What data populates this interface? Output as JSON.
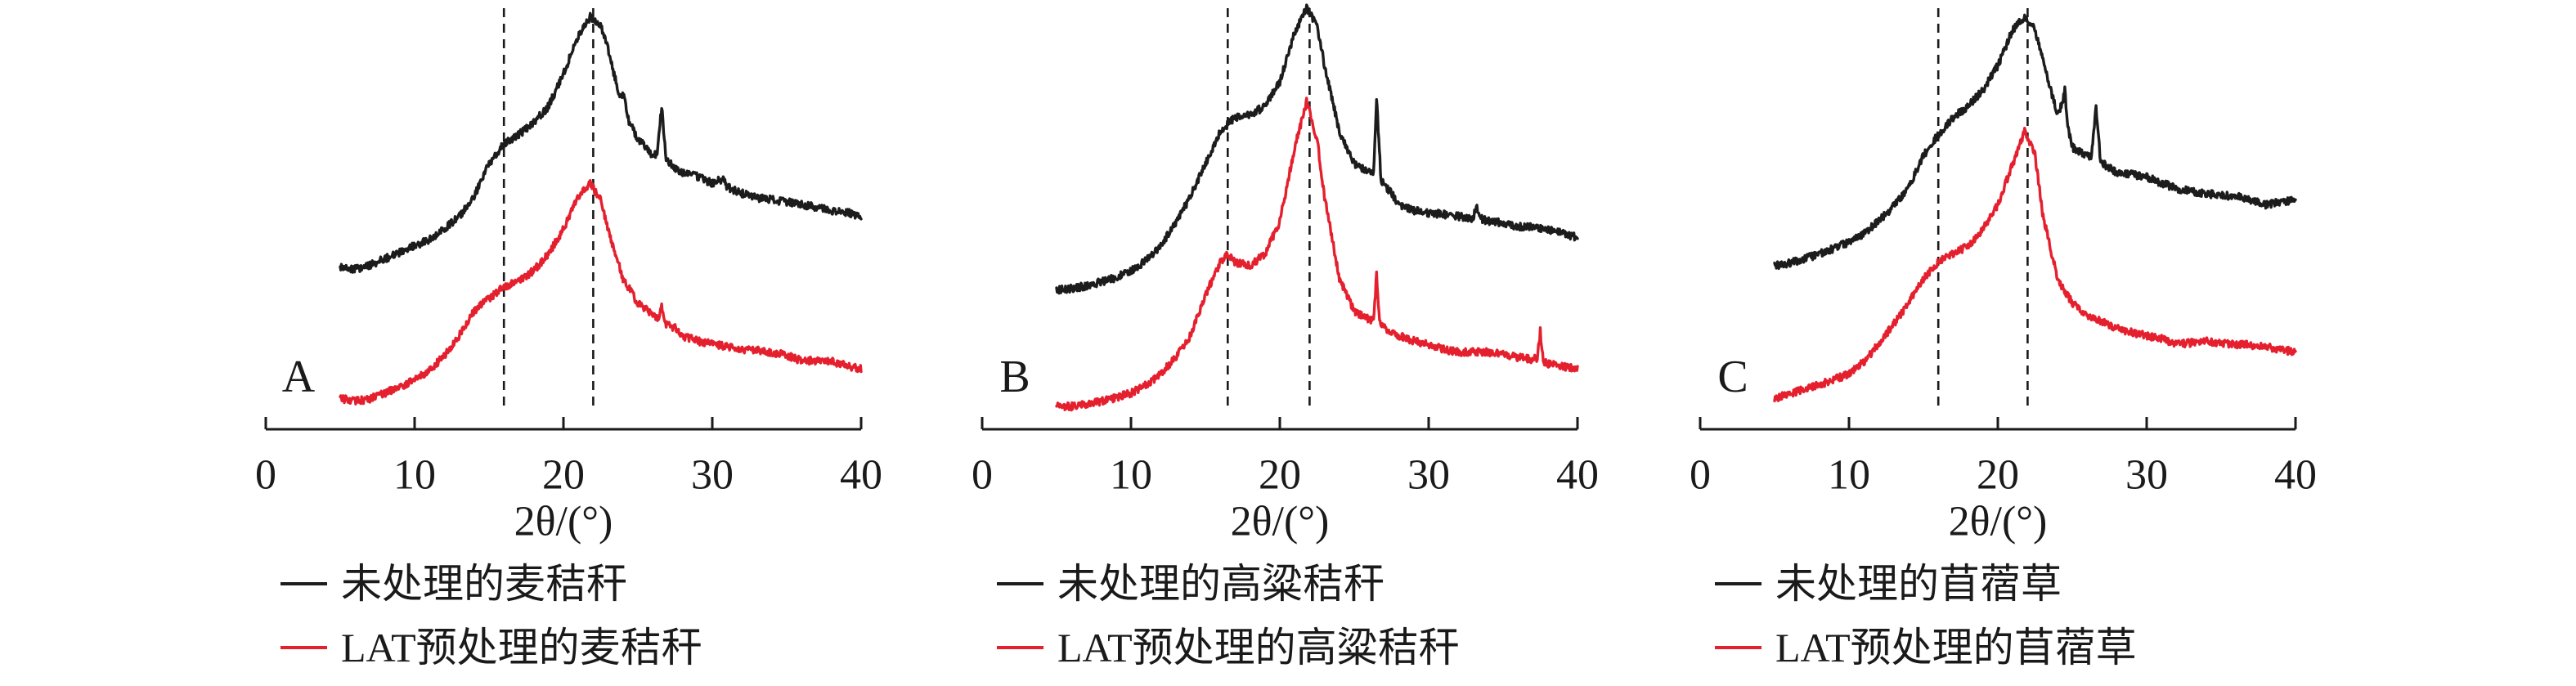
{
  "chart_data": [
    {
      "label": "A",
      "type": "line",
      "xlabel": "2θ/(°)",
      "xlim": [
        0,
        40
      ],
      "xticks": [
        0,
        10,
        20,
        30,
        40
      ],
      "ylim": [
        0,
        100
      ],
      "reference_lines_x": [
        16,
        22
      ],
      "legend_position": "below",
      "series": [
        {
          "name": "未处理的麦秸秆",
          "color": "#1c1c1c",
          "points": [
            [
              5,
              38.5
            ],
            [
              6,
              38
            ],
            [
              7,
              39
            ],
            [
              8,
              40.5
            ],
            [
              9,
              42
            ],
            [
              10,
              43.6
            ],
            [
              11,
              45
            ],
            [
              12,
              47.5
            ],
            [
              13,
              50.5
            ],
            [
              14,
              55.3
            ],
            [
              15,
              63
            ],
            [
              16,
              67.7
            ],
            [
              17,
              70
            ],
            [
              18,
              72.8
            ],
            [
              19,
              76.7
            ],
            [
              20,
              84.4
            ],
            [
              21,
              93.4
            ],
            [
              21.8,
              98
            ],
            [
              22.5,
              96
            ],
            [
              23,
              90.3
            ],
            [
              23.7,
              80
            ],
            [
              24.1,
              79
            ],
            [
              24.4,
              73
            ],
            [
              25,
              69
            ],
            [
              26,
              65
            ],
            [
              26.3,
              65.5
            ],
            [
              26.6,
              76.7
            ],
            [
              26.9,
              64
            ],
            [
              27.5,
              62
            ],
            [
              28,
              61
            ],
            [
              29,
              60
            ],
            [
              30,
              58.4
            ],
            [
              30.7,
              59.5
            ],
            [
              31,
              57.5
            ],
            [
              32,
              56
            ],
            [
              33,
              55
            ],
            [
              34,
              54.5
            ],
            [
              35,
              54
            ],
            [
              36,
              53.3
            ],
            [
              37,
              52.8
            ],
            [
              38,
              52
            ],
            [
              39,
              51.5
            ],
            [
              40,
              50.6
            ]
          ]
        },
        {
          "name": "LAT预处理的麦秸秆",
          "color": "#e5202e",
          "points": [
            [
              5,
              7.4
            ],
            [
              6,
              6.6
            ],
            [
              7,
              7.2
            ],
            [
              8,
              8.6
            ],
            [
              9,
              10
            ],
            [
              10,
              11.7
            ],
            [
              11,
              14
            ],
            [
              12,
              17.5
            ],
            [
              13,
              22.2
            ],
            [
              14,
              28
            ],
            [
              15,
              31.1
            ],
            [
              16,
              33.9
            ],
            [
              17,
              35
            ],
            [
              18,
              37.7
            ],
            [
              19,
              41.6
            ],
            [
              20,
              47.5
            ],
            [
              21,
              55.3
            ],
            [
              21.8,
              58.4
            ],
            [
              22.5,
              54.5
            ],
            [
              23,
              47.5
            ],
            [
              24,
              35.8
            ],
            [
              25,
              30
            ],
            [
              26,
              27.2
            ],
            [
              26.4,
              26.5
            ],
            [
              26.6,
              29.2
            ],
            [
              26.9,
              25
            ],
            [
              27.5,
              24
            ],
            [
              28,
              22.2
            ],
            [
              29,
              21
            ],
            [
              30,
              20.2
            ],
            [
              31,
              19.6
            ],
            [
              32,
              19
            ],
            [
              33,
              18.8
            ],
            [
              34,
              18.3
            ],
            [
              35,
              17.5
            ],
            [
              36,
              16.3
            ],
            [
              37,
              16.3
            ],
            [
              38,
              16.3
            ],
            [
              39,
              15
            ],
            [
              40,
              14.4
            ]
          ]
        }
      ]
    },
    {
      "label": "B",
      "type": "line",
      "xlabel": "2θ/(°)",
      "xlim": [
        0,
        40
      ],
      "xticks": [
        0,
        10,
        20,
        30,
        40
      ],
      "ylim": [
        0,
        100
      ],
      "reference_lines_x": [
        16.5,
        22
      ],
      "legend_position": "below",
      "series": [
        {
          "name": "未处理的高粱秸秆",
          "color": "#1c1c1c",
          "points": [
            [
              5,
              33
            ],
            [
              6,
              33.5
            ],
            [
              7,
              34
            ],
            [
              8,
              35
            ],
            [
              9,
              36
            ],
            [
              10,
              37.7
            ],
            [
              11,
              40
            ],
            [
              12,
              43.6
            ],
            [
              13,
              49
            ],
            [
              14,
              55.3
            ],
            [
              15,
              63
            ],
            [
              16,
              70.8
            ],
            [
              17,
              74
            ],
            [
              18,
              74.7
            ],
            [
              19,
              76.7
            ],
            [
              20,
              82.5
            ],
            [
              21,
              94.2
            ],
            [
              21.8,
              100
            ],
            [
              22.5,
              96
            ],
            [
              23,
              86.4
            ],
            [
              24,
              70.8
            ],
            [
              25,
              63
            ],
            [
              26,
              61
            ],
            [
              26.3,
              61
            ],
            [
              26.5,
              78.6
            ],
            [
              26.8,
              59
            ],
            [
              27.5,
              56
            ],
            [
              28,
              53.3
            ],
            [
              29,
              52
            ],
            [
              30,
              51.4
            ],
            [
              31,
              51
            ],
            [
              32,
              50.6
            ],
            [
              33,
              50
            ],
            [
              33.2,
              53
            ],
            [
              33.5,
              50
            ],
            [
              34,
              49.4
            ],
            [
              35,
              49
            ],
            [
              36,
              48.2
            ],
            [
              37,
              48
            ],
            [
              38,
              47.5
            ],
            [
              39,
              46.5
            ],
            [
              40,
              45.5
            ]
          ]
        },
        {
          "name": "LAT预处理的高粱秸秆",
          "color": "#e5202e",
          "points": [
            [
              5,
              5.4
            ],
            [
              6,
              5.4
            ],
            [
              7,
              6
            ],
            [
              8,
              6.6
            ],
            [
              9,
              7.5
            ],
            [
              10,
              8.6
            ],
            [
              11,
              10.5
            ],
            [
              12,
              13.2
            ],
            [
              13,
              17
            ],
            [
              14,
              22.2
            ],
            [
              15,
              31.9
            ],
            [
              16,
              39.7
            ],
            [
              16.5,
              41.6
            ],
            [
              17,
              39.7
            ],
            [
              18,
              38.9
            ],
            [
              19,
              41.6
            ],
            [
              20,
              49.4
            ],
            [
              21,
              66.9
            ],
            [
              21.8,
              77.8
            ],
            [
              22.5,
              68.9
            ],
            [
              23,
              55.3
            ],
            [
              24,
              35.8
            ],
            [
              25,
              28
            ],
            [
              26,
              26.1
            ],
            [
              26.3,
              26
            ],
            [
              26.5,
              36.6
            ],
            [
              26.7,
              25
            ],
            [
              27,
              24.1
            ],
            [
              28,
              22.2
            ],
            [
              29,
              21
            ],
            [
              30,
              20.2
            ],
            [
              31,
              19
            ],
            [
              32,
              18.3
            ],
            [
              33,
              18.3
            ],
            [
              34,
              18.3
            ],
            [
              35,
              17.8
            ],
            [
              36,
              17.1
            ],
            [
              37,
              16.5
            ],
            [
              37.3,
              17
            ],
            [
              37.5,
              23.3
            ],
            [
              37.7,
              16
            ],
            [
              38,
              15.6
            ],
            [
              39,
              15
            ],
            [
              40,
              14.4
            ]
          ]
        }
      ]
    },
    {
      "label": "C",
      "type": "line",
      "xlabel": "2θ/(°)",
      "xlim": [
        0,
        40
      ],
      "xticks": [
        0,
        10,
        20,
        30,
        40
      ],
      "ylim": [
        0,
        100
      ],
      "reference_lines_x": [
        16,
        22
      ],
      "legend_position": "below",
      "series": [
        {
          "name": "未处理的苜蓿草",
          "color": "#1c1c1c",
          "points": [
            [
              5,
              38.9
            ],
            [
              6,
              39.5
            ],
            [
              7,
              40.5
            ],
            [
              8,
              41.6
            ],
            [
              9,
              43
            ],
            [
              10,
              44.4
            ],
            [
              11,
              46.5
            ],
            [
              12,
              49.4
            ],
            [
              13,
              53
            ],
            [
              14,
              57.2
            ],
            [
              15,
              65
            ],
            [
              16,
              70
            ],
            [
              17,
              74
            ],
            [
              18,
              76.7
            ],
            [
              19,
              80.5
            ],
            [
              20,
              86.4
            ],
            [
              21,
              94.9
            ],
            [
              21.8,
              98
            ],
            [
              22.5,
              94.9
            ],
            [
              23,
              88.3
            ],
            [
              24,
              74.7
            ],
            [
              24.3,
              77
            ],
            [
              24.5,
              80.5
            ],
            [
              24.7,
              72
            ],
            [
              25,
              67
            ],
            [
              26,
              65
            ],
            [
              26.3,
              65
            ],
            [
              26.6,
              76.7
            ],
            [
              26.9,
              63.5
            ],
            [
              27.5,
              62
            ],
            [
              28,
              61
            ],
            [
              29,
              60.5
            ],
            [
              30,
              59.9
            ],
            [
              31,
              58.5
            ],
            [
              32,
              57.2
            ],
            [
              33,
              56.5
            ],
            [
              34,
              56
            ],
            [
              35,
              55.5
            ],
            [
              36,
              55.3
            ],
            [
              37,
              54.5
            ],
            [
              38,
              53.3
            ],
            [
              39,
              54
            ],
            [
              40,
              54.5
            ]
          ]
        },
        {
          "name": "LAT预处理的苜蓿草",
          "color": "#e5202e",
          "points": [
            [
              5,
              7.4
            ],
            [
              6,
              8.5
            ],
            [
              7,
              9.5
            ],
            [
              8,
              10.5
            ],
            [
              9,
              11.8
            ],
            [
              10,
              13.2
            ],
            [
              11,
              16
            ],
            [
              12,
              20.2
            ],
            [
              13,
              25
            ],
            [
              14,
              30
            ],
            [
              15,
              35.8
            ],
            [
              16,
              39.7
            ],
            [
              17,
              41.6
            ],
            [
              18,
              43.6
            ],
            [
              19,
              47.5
            ],
            [
              20,
              53.3
            ],
            [
              21,
              63
            ],
            [
              21.8,
              70.8
            ],
            [
              22.5,
              65
            ],
            [
              23,
              51.4
            ],
            [
              24,
              35.8
            ],
            [
              25,
              30
            ],
            [
              26,
              27.2
            ],
            [
              27,
              25.5
            ],
            [
              28,
              24.1
            ],
            [
              29,
              23
            ],
            [
              30,
              22.2
            ],
            [
              31,
              21.5
            ],
            [
              32,
              20.2
            ],
            [
              33,
              20.5
            ],
            [
              34,
              21
            ],
            [
              35,
              20.5
            ],
            [
              36,
              20.2
            ],
            [
              37,
              20
            ],
            [
              38,
              19.5
            ],
            [
              39,
              19
            ],
            [
              40,
              18.3
            ]
          ]
        }
      ]
    }
  ]
}
